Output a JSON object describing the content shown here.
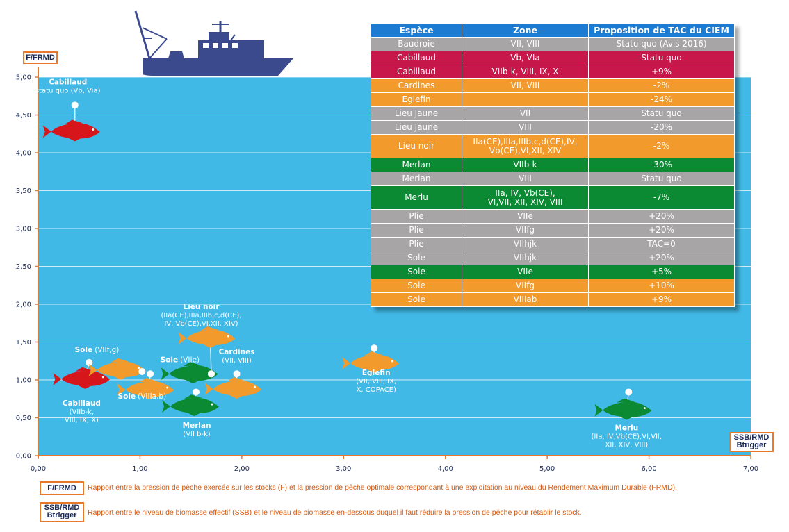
{
  "chart_data": {
    "type": "scatter",
    "y_axis_label": "F/FRMD",
    "x_axis_label": [
      "SSB/RMD",
      "Btrigger"
    ],
    "xlim": [
      0,
      7
    ],
    "ylim": [
      0,
      5
    ],
    "x_ticks": [
      "0,00",
      "1,00",
      "2,00",
      "3,00",
      "4,00",
      "5,00",
      "6,00",
      "7,00"
    ],
    "x_tick_values": [
      0,
      1,
      2,
      3,
      4,
      5,
      6,
      7
    ],
    "y_ticks": [
      "0,00",
      "0,50",
      "1,00",
      "1,50",
      "2,00",
      "2,50",
      "3,00",
      "3,50",
      "4,00",
      "4,50",
      "5,00"
    ],
    "y_tick_values": [
      0,
      0.5,
      1,
      1.5,
      2,
      2.5,
      3,
      3.5,
      4,
      4.5,
      5
    ],
    "points": [
      {
        "id": "cabillaud-vb",
        "color": "#d7161b",
        "x": 0.36,
        "y": 4.28,
        "marker": {
          "x": 0.36,
          "y": 4.63
        },
        "label_title": "Cabillaud",
        "label_lines": [
          "statu quo (Vb, Via)"
        ]
      },
      {
        "id": "cabillaud-viib",
        "color": "#d7161b",
        "x": 0.46,
        "y": 1.01,
        "marker": {
          "x": 0.5,
          "y": 1.23
        },
        "label_title": "Cabillaud",
        "label_lines": [
          "(VIIb-k,",
          "VIII, IX, X)"
        ]
      },
      {
        "id": "sole-viifg",
        "color": "#f39a2c",
        "x": 0.81,
        "y": 1.13,
        "marker": {
          "x": 1.02,
          "y": 1.11
        },
        "label_title": "Sole",
        "label_lines": [
          "(VIIf,g)"
        ]
      },
      {
        "id": "sole-viiiab",
        "color": "#f39a2c",
        "x": 1.09,
        "y": 0.87,
        "marker": {
          "x": 1.1,
          "y": 1.08
        },
        "label_title": "Sole",
        "label_lines": [
          "(VIIIa,b)"
        ]
      },
      {
        "id": "sole-viie",
        "color": "#0c8a33",
        "x": 1.52,
        "y": 1.08,
        "marker": {
          "x": 1.7,
          "y": 1.08
        },
        "label_title": "Sole",
        "label_lines": [
          "(VIIe)"
        ]
      },
      {
        "id": "merlan-viib",
        "color": "#0c8a33",
        "x": 1.53,
        "y": 0.65,
        "marker": {
          "x": 1.55,
          "y": 0.84
        },
        "label_title": "Merlan",
        "label_lines": [
          "(VII b-k)"
        ]
      },
      {
        "id": "lieu-noir",
        "color": "#f39a2c",
        "x": 1.69,
        "y": 1.55,
        "marker": {
          "x": 1.7,
          "y": 1.08
        },
        "label_title": "Lieu noir",
        "label_lines": [
          "(IIa(CE),IIIa,IIIb,c,d(CE),",
          "IV, Vb(CE),VI,XII, XIV)"
        ]
      },
      {
        "id": "cardines",
        "color": "#f39a2c",
        "x": 1.95,
        "y": 0.88,
        "marker": {
          "x": 1.95,
          "y": 1.08
        },
        "label_title": "Cardines",
        "label_lines": [
          "(VII, VIII)"
        ]
      },
      {
        "id": "eglefin",
        "color": "#f39a2c",
        "x": 3.3,
        "y": 1.22,
        "marker": {
          "x": 3.3,
          "y": 1.42
        },
        "label_title": "Eglefin",
        "label_lines": [
          "(VII, VIII, IX,",
          "X, COPACE)"
        ]
      },
      {
        "id": "merlu",
        "color": "#0c8a33",
        "x": 5.78,
        "y": 0.6,
        "marker": {
          "x": 5.8,
          "y": 0.84
        },
        "label_title": "Merlu",
        "label_lines": [
          "(IIa, IV,Vb(CE),VI,VII,",
          "XII, XIV, VIII)"
        ]
      }
    ],
    "grid": true,
    "background_color": "#41b9e6",
    "grid_color": "#ffffff"
  },
  "axis_labels": {
    "y_badge": "F/FRMD",
    "x_badge_line1": "SSB/RMD",
    "x_badge_line2": "Btrigger"
  },
  "legend": {
    "f_badge": "F/FRMD",
    "f_text": "Rapport entre la pression de pêche exercée sur les stocks (F) et la pression de pêche optimale correspondant à une exploitation au niveau du Rendement Maximum Durable (FRMD).",
    "ssb_badge_line1": "SSB/RMD",
    "ssb_badge_line2": "Btrigger",
    "ssb_text": "Rapport entre le niveau de biomasse effectif (SSB) et le niveau de biomasse en-dessous duquel il faut réduire la pression de pêche pour rétablir le stock."
  },
  "table": {
    "headers": [
      "Espèce",
      "Zone",
      "Proposition de TAC du CIEM"
    ],
    "rows": [
      {
        "species": "Baudroie",
        "zone": "VII, VIII",
        "proposal": "Statu quo (Avis 2016)",
        "color": "grey"
      },
      {
        "species": "Cabillaud",
        "zone": "Vb, VIa",
        "proposal": "Statu quo",
        "color": "red"
      },
      {
        "species": "Cabillaud",
        "zone": "VIIb-k, VIII, IX, X",
        "proposal": "+9%",
        "color": "red"
      },
      {
        "species": "Cardines",
        "zone": "VII, VIII",
        "proposal": "-2%",
        "color": "orange"
      },
      {
        "species": "Eglefin",
        "zone": "",
        "proposal": "-24%",
        "color": "orange"
      },
      {
        "species": "Lieu Jaune",
        "zone": "VII",
        "proposal": "Statu quo",
        "color": "grey"
      },
      {
        "species": "Lieu Jaune",
        "zone": "VIII",
        "proposal": "-20%",
        "color": "grey"
      },
      {
        "species": "Lieu noir",
        "zone": "IIa(CE),IIIa,IIIb,c,d(CE),IV,\nVb(CE),VI,XII, XIV",
        "proposal": "-2%",
        "color": "orange",
        "tall": true
      },
      {
        "species": "Merlan",
        "zone": "VIIb-k",
        "proposal": "-30%",
        "color": "green"
      },
      {
        "species": "Merlan",
        "zone": "VIII",
        "proposal": "Statu quo",
        "color": "grey"
      },
      {
        "species": "Merlu",
        "zone": "IIa, IV, Vb(CE),\nVI,VII, XII, XIV, VIII",
        "proposal": "-7%",
        "color": "green",
        "tall": true
      },
      {
        "species": "Plie",
        "zone": "VIIe",
        "proposal": "+20%",
        "color": "grey"
      },
      {
        "species": "Plie",
        "zone": "VIIfg",
        "proposal": "+20%",
        "color": "grey"
      },
      {
        "species": "Plie",
        "zone": "VIIhjk",
        "proposal": "TAC=0",
        "color": "grey"
      },
      {
        "species": "Sole",
        "zone": "VIIhjk",
        "proposal": "+20%",
        "color": "grey"
      },
      {
        "species": "Sole",
        "zone": "VIIe",
        "proposal": "+5%",
        "color": "green"
      },
      {
        "species": "Sole",
        "zone": "VIIfg",
        "proposal": "+10%",
        "color": "orange"
      },
      {
        "species": "Sole",
        "zone": "VIIIab",
        "proposal": "+9%",
        "color": "orange"
      }
    ]
  },
  "colors": {
    "plot_background": "#41b9e6",
    "axis_orange": "#e8782a",
    "boat": "#3a4a8c",
    "grey": "#a7a5a6",
    "red": "#c8174a",
    "orange": "#f39a2c",
    "green": "#0c8a33",
    "header_blue": "#1e7bd2"
  },
  "icons": {
    "boat": "fishing-boat-icon",
    "fish": "fish-icon"
  }
}
